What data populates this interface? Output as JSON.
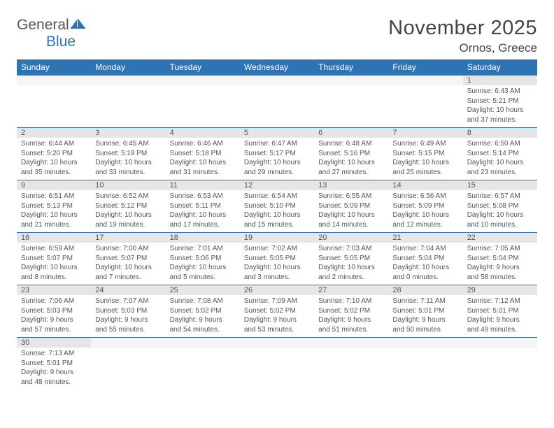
{
  "logo": {
    "general": "General",
    "blue": "Blue"
  },
  "title": "November 2025",
  "location": "Ornos, Greece",
  "weekday_headers": [
    "Sunday",
    "Monday",
    "Tuesday",
    "Wednesday",
    "Thursday",
    "Friday",
    "Saturday"
  ],
  "colors": {
    "header_bg": "#2e74b5",
    "header_text": "#ffffff",
    "daynum_bg": "#e6e6e6",
    "border": "#2e74b5",
    "text": "#555555",
    "background": "#ffffff"
  },
  "layout": {
    "first_weekday_index": 6,
    "columns": 7,
    "rows": 6
  },
  "days": [
    {
      "n": 1,
      "sunrise": "6:43 AM",
      "sunset": "5:21 PM",
      "daylight": "10 hours and 37 minutes."
    },
    {
      "n": 2,
      "sunrise": "6:44 AM",
      "sunset": "5:20 PM",
      "daylight": "10 hours and 35 minutes."
    },
    {
      "n": 3,
      "sunrise": "6:45 AM",
      "sunset": "5:19 PM",
      "daylight": "10 hours and 33 minutes."
    },
    {
      "n": 4,
      "sunrise": "6:46 AM",
      "sunset": "5:18 PM",
      "daylight": "10 hours and 31 minutes."
    },
    {
      "n": 5,
      "sunrise": "6:47 AM",
      "sunset": "5:17 PM",
      "daylight": "10 hours and 29 minutes."
    },
    {
      "n": 6,
      "sunrise": "6:48 AM",
      "sunset": "5:16 PM",
      "daylight": "10 hours and 27 minutes."
    },
    {
      "n": 7,
      "sunrise": "6:49 AM",
      "sunset": "5:15 PM",
      "daylight": "10 hours and 25 minutes."
    },
    {
      "n": 8,
      "sunrise": "6:50 AM",
      "sunset": "5:14 PM",
      "daylight": "10 hours and 23 minutes."
    },
    {
      "n": 9,
      "sunrise": "6:51 AM",
      "sunset": "5:13 PM",
      "daylight": "10 hours and 21 minutes."
    },
    {
      "n": 10,
      "sunrise": "6:52 AM",
      "sunset": "5:12 PM",
      "daylight": "10 hours and 19 minutes."
    },
    {
      "n": 11,
      "sunrise": "6:53 AM",
      "sunset": "5:11 PM",
      "daylight": "10 hours and 17 minutes."
    },
    {
      "n": 12,
      "sunrise": "6:54 AM",
      "sunset": "5:10 PM",
      "daylight": "10 hours and 15 minutes."
    },
    {
      "n": 13,
      "sunrise": "6:55 AM",
      "sunset": "5:09 PM",
      "daylight": "10 hours and 14 minutes."
    },
    {
      "n": 14,
      "sunrise": "6:56 AM",
      "sunset": "5:09 PM",
      "daylight": "10 hours and 12 minutes."
    },
    {
      "n": 15,
      "sunrise": "6:57 AM",
      "sunset": "5:08 PM",
      "daylight": "10 hours and 10 minutes."
    },
    {
      "n": 16,
      "sunrise": "6:59 AM",
      "sunset": "5:07 PM",
      "daylight": "10 hours and 8 minutes."
    },
    {
      "n": 17,
      "sunrise": "7:00 AM",
      "sunset": "5:07 PM",
      "daylight": "10 hours and 7 minutes."
    },
    {
      "n": 18,
      "sunrise": "7:01 AM",
      "sunset": "5:06 PM",
      "daylight": "10 hours and 5 minutes."
    },
    {
      "n": 19,
      "sunrise": "7:02 AM",
      "sunset": "5:05 PM",
      "daylight": "10 hours and 3 minutes."
    },
    {
      "n": 20,
      "sunrise": "7:03 AM",
      "sunset": "5:05 PM",
      "daylight": "10 hours and 2 minutes."
    },
    {
      "n": 21,
      "sunrise": "7:04 AM",
      "sunset": "5:04 PM",
      "daylight": "10 hours and 0 minutes."
    },
    {
      "n": 22,
      "sunrise": "7:05 AM",
      "sunset": "5:04 PM",
      "daylight": "9 hours and 58 minutes."
    },
    {
      "n": 23,
      "sunrise": "7:06 AM",
      "sunset": "5:03 PM",
      "daylight": "9 hours and 57 minutes."
    },
    {
      "n": 24,
      "sunrise": "7:07 AM",
      "sunset": "5:03 PM",
      "daylight": "9 hours and 55 minutes."
    },
    {
      "n": 25,
      "sunrise": "7:08 AM",
      "sunset": "5:02 PM",
      "daylight": "9 hours and 54 minutes."
    },
    {
      "n": 26,
      "sunrise": "7:09 AM",
      "sunset": "5:02 PM",
      "daylight": "9 hours and 53 minutes."
    },
    {
      "n": 27,
      "sunrise": "7:10 AM",
      "sunset": "5:02 PM",
      "daylight": "9 hours and 51 minutes."
    },
    {
      "n": 28,
      "sunrise": "7:11 AM",
      "sunset": "5:01 PM",
      "daylight": "9 hours and 50 minutes."
    },
    {
      "n": 29,
      "sunrise": "7:12 AM",
      "sunset": "5:01 PM",
      "daylight": "9 hours and 49 minutes."
    },
    {
      "n": 30,
      "sunrise": "7:13 AM",
      "sunset": "5:01 PM",
      "daylight": "9 hours and 48 minutes."
    }
  ],
  "labels": {
    "sunrise": "Sunrise:",
    "sunset": "Sunset:",
    "daylight": "Daylight:"
  }
}
